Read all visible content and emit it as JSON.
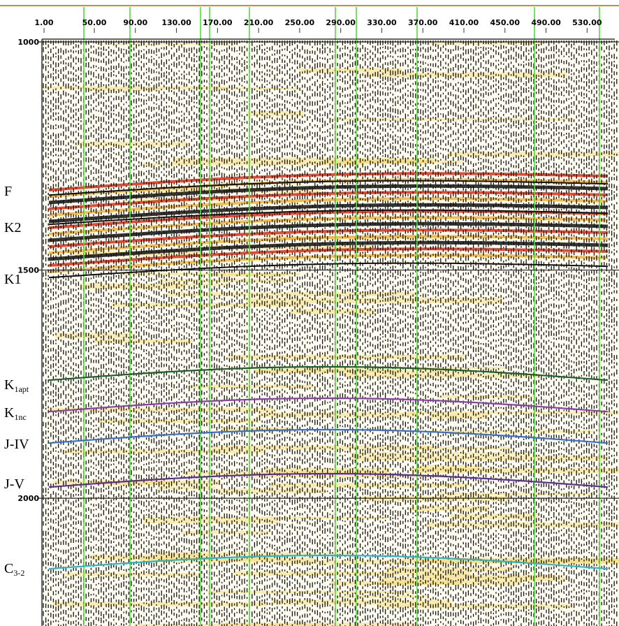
{
  "chart_data": {
    "type": "seismic-section",
    "xlim": [
      1,
      557
    ],
    "xticks": [
      {
        "value": 1,
        "label": "1.00"
      },
      {
        "value": 50,
        "label": "50.00"
      },
      {
        "value": 90,
        "label": "90.00"
      },
      {
        "value": 130,
        "label": "130.00"
      },
      {
        "value": 170,
        "label": "170.00"
      },
      {
        "value": 210,
        "label": "210.00"
      },
      {
        "value": 250,
        "label": "250.00"
      },
      {
        "value": 290,
        "label": "290.00"
      },
      {
        "value": 330,
        "label": "330.00"
      },
      {
        "value": 370,
        "label": "370.00"
      },
      {
        "value": 410,
        "label": "410.00"
      },
      {
        "value": 450,
        "label": "450.00"
      },
      {
        "value": 490,
        "label": "490.00"
      },
      {
        "value": 530,
        "label": "530.00"
      }
    ],
    "ylim": [
      1000,
      2280
    ],
    "yticks": [
      1000,
      1500,
      2000
    ],
    "horizons": [
      {
        "name": "F",
        "sub": "",
        "color": "#111111"
      },
      {
        "name": "K2",
        "sub": "",
        "color": "#111111"
      },
      {
        "name": "K1",
        "sub": "",
        "color": "#111111"
      },
      {
        "name": "K",
        "sub": "1apt",
        "color": "#1f5f2a"
      },
      {
        "name": "K",
        "sub": "1nc",
        "color": "#8a3fa8"
      },
      {
        "name": "J-IV",
        "sub": "",
        "color": "#3a6fc4"
      },
      {
        "name": "J-V",
        "sub": "",
        "color": "#5a2f8f"
      },
      {
        "name": "C",
        "sub": "3-2",
        "color": "#2fb3c4"
      }
    ]
  }
}
